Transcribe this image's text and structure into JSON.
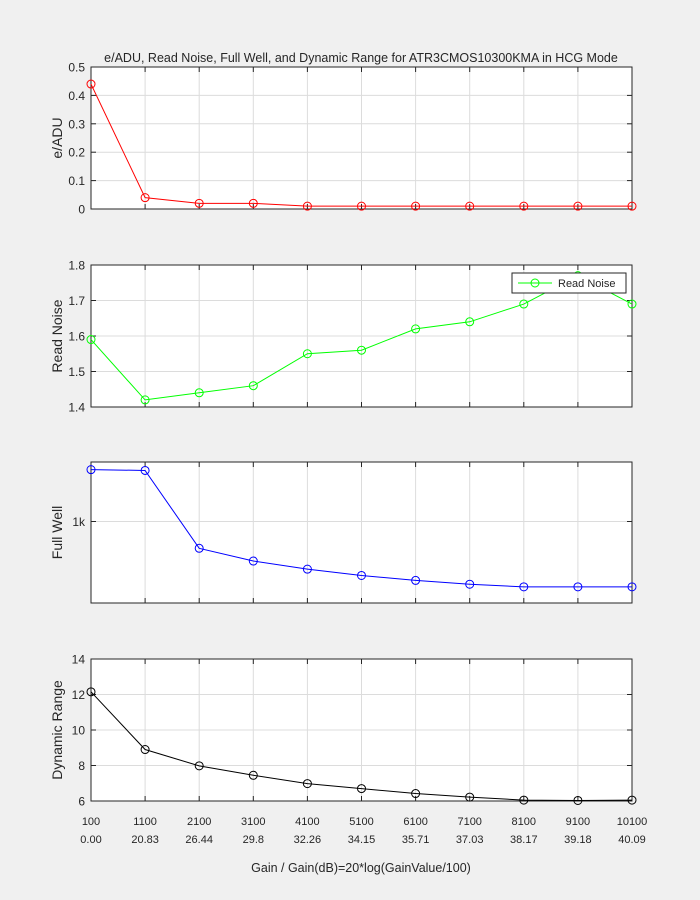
{
  "chart_data": [
    {
      "type": "line",
      "title": "e/ADU, Read Noise, Full Well, and Dynamic Range for ATR3CMOS10300KMA in HCG Mode",
      "ylabel": "e/ADU",
      "ylim": [
        0,
        0.5
      ],
      "yticks": [
        0,
        0.1,
        0.2,
        0.3,
        0.4,
        0.5
      ],
      "ytick_labels": [
        "0",
        "0.1",
        "0.2",
        "0.3",
        "0.4",
        "0.5"
      ],
      "grid": true,
      "color": "#ff0000",
      "x": [
        100,
        1100,
        2100,
        3100,
        4100,
        5100,
        6100,
        7100,
        8100,
        9100,
        10100
      ],
      "values": [
        0.44,
        0.04,
        0.02,
        0.02,
        0.01,
        0.01,
        0.01,
        0.01,
        0.01,
        0.01,
        0.01
      ]
    },
    {
      "type": "line",
      "ylabel": "Read Noise",
      "ylim": [
        1.4,
        1.8
      ],
      "yticks": [
        1.4,
        1.5,
        1.6,
        1.7,
        1.8
      ],
      "ytick_labels": [
        "1.4",
        "1.5",
        "1.6",
        "1.7",
        "1.8"
      ],
      "grid": true,
      "legend": "top-right",
      "series_name": "Read Noise",
      "color": "#00ff00",
      "x": [
        100,
        1100,
        2100,
        3100,
        4100,
        5100,
        6100,
        7100,
        8100,
        9100,
        10100
      ],
      "values": [
        1.59,
        1.42,
        1.44,
        1.46,
        1.55,
        1.56,
        1.62,
        1.64,
        1.69,
        1.77,
        1.69
      ]
    },
    {
      "type": "line",
      "ylabel": "Full Well",
      "scale": "log",
      "ylim": [
        270,
        2600
      ],
      "yticks": [
        1000
      ],
      "ytick_labels": [
        "1k"
      ],
      "grid": true,
      "color": "#0000ff",
      "x": [
        100,
        1100,
        2100,
        3100,
        4100,
        5100,
        6100,
        7100,
        8100,
        9100,
        10100
      ],
      "values": [
        2300,
        2270,
        650,
        530,
        465,
        420,
        388,
        365,
        350,
        350,
        350
      ]
    },
    {
      "type": "line",
      "ylabel": "Dynamic Range",
      "ylim": [
        6,
        14
      ],
      "yticks": [
        6,
        8,
        10,
        12,
        14
      ],
      "ytick_labels": [
        "6",
        "8",
        "10",
        "12",
        "14"
      ],
      "grid": true,
      "color": "#000000",
      "x": [
        100,
        1100,
        2100,
        3100,
        4100,
        5100,
        6100,
        7100,
        8100,
        9100,
        10100
      ],
      "values": [
        12.15,
        8.9,
        7.98,
        7.45,
        6.98,
        6.7,
        6.42,
        6.22,
        6.05,
        6.03,
        6.05
      ]
    }
  ],
  "x_axis": {
    "xlim": [
      100,
      10100
    ],
    "tick_labels_gain": [
      "100",
      "1100",
      "2100",
      "3100",
      "4100",
      "5100",
      "6100",
      "7100",
      "8100",
      "9100",
      "10100"
    ],
    "tick_labels_db": [
      "0.00",
      "20.83",
      "26.44",
      "29.8",
      "32.26",
      "34.15",
      "35.71",
      "37.03",
      "38.17",
      "39.18",
      "40.09"
    ],
    "xlabel": "Gain / Gain(dB)=20*log(GainValue/100)"
  }
}
